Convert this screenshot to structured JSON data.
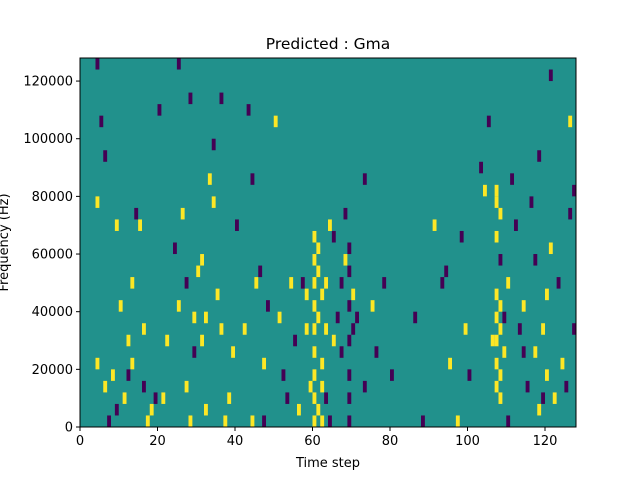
{
  "chart_data": {
    "type": "heatmap",
    "title": "Predicted : Gma",
    "xlabel": "Time step",
    "ylabel": "Frequency (Hz)",
    "xlim": [
      0,
      128
    ],
    "ylim": [
      0,
      128000
    ],
    "x_ticks": [
      0,
      20,
      40,
      60,
      80,
      100,
      120
    ],
    "y_ticks": [
      0,
      20000,
      40000,
      60000,
      80000,
      100000,
      120000
    ],
    "x_tick_labels": [
      "0",
      "20",
      "40",
      "60",
      "80",
      "100",
      "120"
    ],
    "y_tick_labels": [
      "0",
      "20000",
      "40000",
      "60000",
      "80000",
      "100000",
      "120000"
    ],
    "grid": false,
    "colormap": "viridis",
    "colors": {
      "low": "#440154",
      "mid": "#21918c",
      "high": "#fde725"
    },
    "background_value": 0,
    "cell_size": {
      "time_steps": 1,
      "frequency_hz": 4000
    },
    "high_cells": [
      [
        4,
        76000
      ],
      [
        4,
        20000
      ],
      [
        6,
        12000
      ],
      [
        8,
        16000
      ],
      [
        9,
        68000
      ],
      [
        10,
        40000
      ],
      [
        11,
        8000
      ],
      [
        12,
        28000
      ],
      [
        13,
        20000
      ],
      [
        13,
        48000
      ],
      [
        15,
        68000
      ],
      [
        16,
        32000
      ],
      [
        17,
        0
      ],
      [
        18,
        4000
      ],
      [
        21,
        8000
      ],
      [
        22,
        28000
      ],
      [
        25,
        40000
      ],
      [
        26,
        72000
      ],
      [
        27,
        12000
      ],
      [
        28,
        0
      ],
      [
        29,
        36000
      ],
      [
        30,
        52000
      ],
      [
        31,
        28000
      ],
      [
        31,
        56000
      ],
      [
        32,
        4000
      ],
      [
        32,
        36000
      ],
      [
        33,
        84000
      ],
      [
        34,
        76000
      ],
      [
        35,
        44000
      ],
      [
        36,
        32000
      ],
      [
        37,
        0
      ],
      [
        38,
        8000
      ],
      [
        39,
        24000
      ],
      [
        42,
        32000
      ],
      [
        44,
        0
      ],
      [
        45,
        48000
      ],
      [
        47,
        20000
      ],
      [
        50,
        104000
      ],
      [
        51,
        36000
      ],
      [
        54,
        48000
      ],
      [
        56,
        4000
      ],
      [
        58,
        44000
      ],
      [
        58,
        32000
      ],
      [
        59,
        12000
      ],
      [
        60,
        0
      ],
      [
        60,
        8000
      ],
      [
        60,
        16000
      ],
      [
        60,
        24000
      ],
      [
        60,
        32000
      ],
      [
        60,
        40000
      ],
      [
        60,
        48000
      ],
      [
        60,
        56000
      ],
      [
        60,
        64000
      ],
      [
        61,
        4000
      ],
      [
        61,
        36000
      ],
      [
        61,
        52000
      ],
      [
        61,
        60000
      ],
      [
        62,
        0
      ],
      [
        62,
        12000
      ],
      [
        62,
        20000
      ],
      [
        62,
        44000
      ],
      [
        63,
        32000
      ],
      [
        63,
        48000
      ],
      [
        64,
        68000
      ],
      [
        65,
        28000
      ],
      [
        68,
        56000
      ],
      [
        70,
        44000
      ],
      [
        75,
        40000
      ],
      [
        91,
        68000
      ],
      [
        95,
        20000
      ],
      [
        97,
        0
      ],
      [
        99,
        32000
      ],
      [
        104,
        80000
      ],
      [
        106,
        28000
      ],
      [
        107,
        12000
      ],
      [
        107,
        20000
      ],
      [
        107,
        28000
      ],
      [
        107,
        36000
      ],
      [
        107,
        44000
      ],
      [
        107,
        64000
      ],
      [
        107,
        76000
      ],
      [
        107,
        80000
      ],
      [
        108,
        8000
      ],
      [
        108,
        16000
      ],
      [
        108,
        32000
      ],
      [
        108,
        40000
      ],
      [
        108,
        72000
      ],
      [
        109,
        24000
      ],
      [
        110,
        48000
      ],
      [
        114,
        40000
      ],
      [
        117,
        24000
      ],
      [
        118,
        4000
      ],
      [
        119,
        32000
      ],
      [
        120,
        16000
      ],
      [
        120,
        44000
      ],
      [
        121,
        60000
      ],
      [
        122,
        8000
      ],
      [
        124,
        20000
      ],
      [
        126,
        104000
      ]
    ],
    "low_cells": [
      [
        4,
        124000
      ],
      [
        5,
        104000
      ],
      [
        6,
        92000
      ],
      [
        7,
        0
      ],
      [
        9,
        4000
      ],
      [
        12,
        16000
      ],
      [
        14,
        72000
      ],
      [
        16,
        12000
      ],
      [
        19,
        8000
      ],
      [
        20,
        108000
      ],
      [
        24,
        60000
      ],
      [
        25,
        124000
      ],
      [
        27,
        48000
      ],
      [
        28,
        112000
      ],
      [
        29,
        24000
      ],
      [
        34,
        96000
      ],
      [
        36,
        112000
      ],
      [
        40,
        68000
      ],
      [
        43,
        108000
      ],
      [
        44,
        84000
      ],
      [
        46,
        52000
      ],
      [
        47,
        0
      ],
      [
        48,
        40000
      ],
      [
        52,
        16000
      ],
      [
        53,
        8000
      ],
      [
        55,
        28000
      ],
      [
        57,
        48000
      ],
      [
        63,
        8000
      ],
      [
        64,
        0
      ],
      [
        65,
        64000
      ],
      [
        66,
        36000
      ],
      [
        67,
        48000
      ],
      [
        67,
        24000
      ],
      [
        68,
        72000
      ],
      [
        69,
        0
      ],
      [
        69,
        8000
      ],
      [
        69,
        16000
      ],
      [
        69,
        28000
      ],
      [
        69,
        40000
      ],
      [
        69,
        52000
      ],
      [
        69,
        60000
      ],
      [
        70,
        32000
      ],
      [
        71,
        36000
      ],
      [
        73,
        12000
      ],
      [
        73,
        84000
      ],
      [
        76,
        24000
      ],
      [
        78,
        48000
      ],
      [
        80,
        16000
      ],
      [
        86,
        36000
      ],
      [
        88,
        0
      ],
      [
        93,
        48000
      ],
      [
        94,
        52000
      ],
      [
        98,
        64000
      ],
      [
        100,
        16000
      ],
      [
        103,
        88000
      ],
      [
        105,
        104000
      ],
      [
        108,
        56000
      ],
      [
        109,
        36000
      ],
      [
        110,
        0
      ],
      [
        111,
        84000
      ],
      [
        112,
        68000
      ],
      [
        113,
        32000
      ],
      [
        114,
        24000
      ],
      [
        115,
        12000
      ],
      [
        116,
        76000
      ],
      [
        117,
        56000
      ],
      [
        118,
        92000
      ],
      [
        119,
        8000
      ],
      [
        121,
        120000
      ],
      [
        123,
        48000
      ],
      [
        125,
        12000
      ],
      [
        126,
        72000
      ],
      [
        127,
        80000
      ],
      [
        127,
        32000
      ]
    ]
  }
}
